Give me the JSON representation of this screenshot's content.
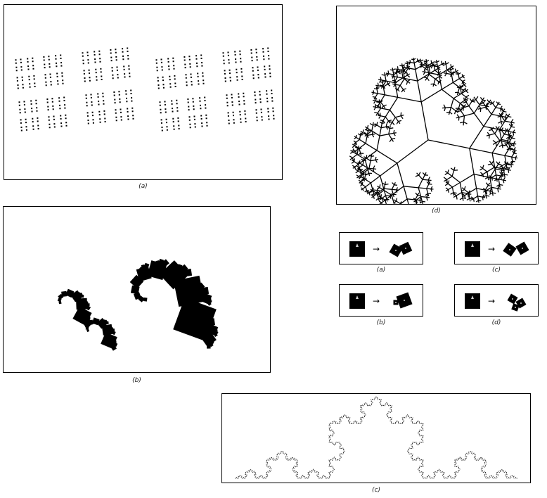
{
  "captions": {
    "fig_a": "(a)",
    "fig_b": "(b)",
    "fig_c": "(c)",
    "fig_d": "(d)",
    "rule_a": "(a)",
    "rule_b": "(b)",
    "rule_c": "(c)",
    "rule_d": "(d)"
  },
  "arrow_glyph": "→",
  "colors": {
    "ink": "#000000",
    "marker": "#cccccc"
  }
}
